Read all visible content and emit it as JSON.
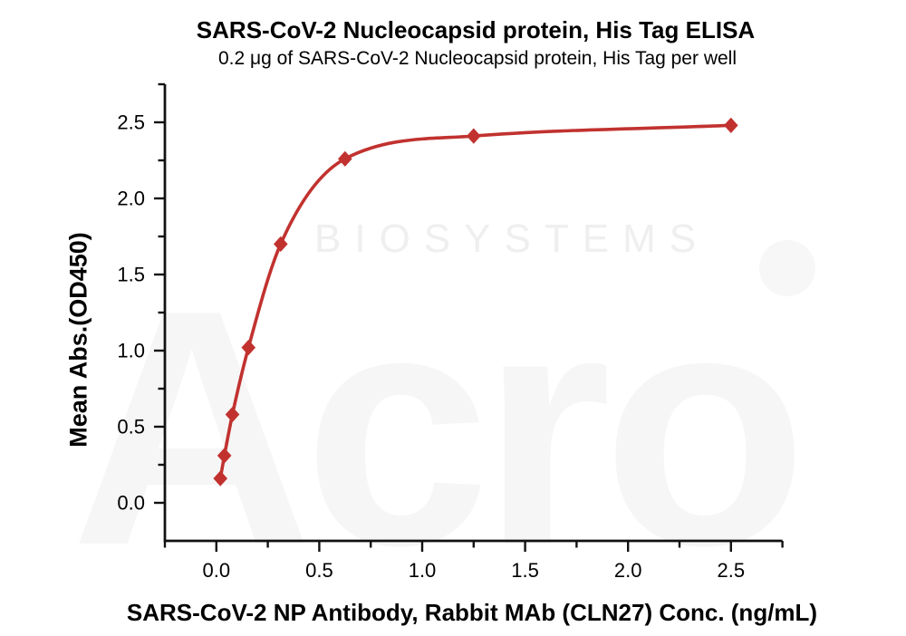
{
  "figure": {
    "watermark": {
      "brand": "Acro",
      "sub": "BIOSYSTEMS"
    }
  },
  "chart_data": {
    "type": "scatter",
    "title": "SARS-CoV-2 Nucleocapsid protein, His Tag ELISA",
    "subtitle": "0.2 μg of SARS-CoV-2 Nucleocapsid protein, His Tag per well",
    "xlabel": "SARS-CoV-2 NP Antibody, Rabbit MAb (CLN27) Conc. (ng/mL)",
    "ylabel": "Mean Abs.(OD450)",
    "series": [
      {
        "name": "SARS-CoV-2 NP Antibody, Rabbit MAb (CLN27)",
        "marker": "diamond",
        "fit": "4PL saturation curve",
        "x": [
          0.0195,
          0.039,
          0.078,
          0.156,
          0.3125,
          0.625,
          1.25,
          2.5
        ],
        "y": [
          0.16,
          0.31,
          0.58,
          1.02,
          1.7,
          2.26,
          2.41,
          2.48
        ]
      }
    ],
    "xlim": [
      -0.25,
      2.75
    ],
    "ylim": [
      -0.25,
      2.75
    ],
    "x_ticks_major": [
      0,
      0.5,
      1.0,
      1.5,
      2.0,
      2.5
    ],
    "x_ticks_minor": [
      -0.25,
      0.25,
      0.75,
      1.25,
      1.75,
      2.25,
      2.75
    ],
    "y_ticks_major": [
      0,
      0.5,
      1.0,
      1.5,
      2.0,
      2.5
    ],
    "y_ticks_minor": [
      0.25,
      0.75,
      1.25,
      1.75,
      2.25,
      2.75
    ],
    "tick_decimals": 1,
    "grid": false,
    "legend": "none",
    "colors": {
      "curve": "#c1322f",
      "marker": "#c1322f",
      "axis": "#111111"
    }
  }
}
